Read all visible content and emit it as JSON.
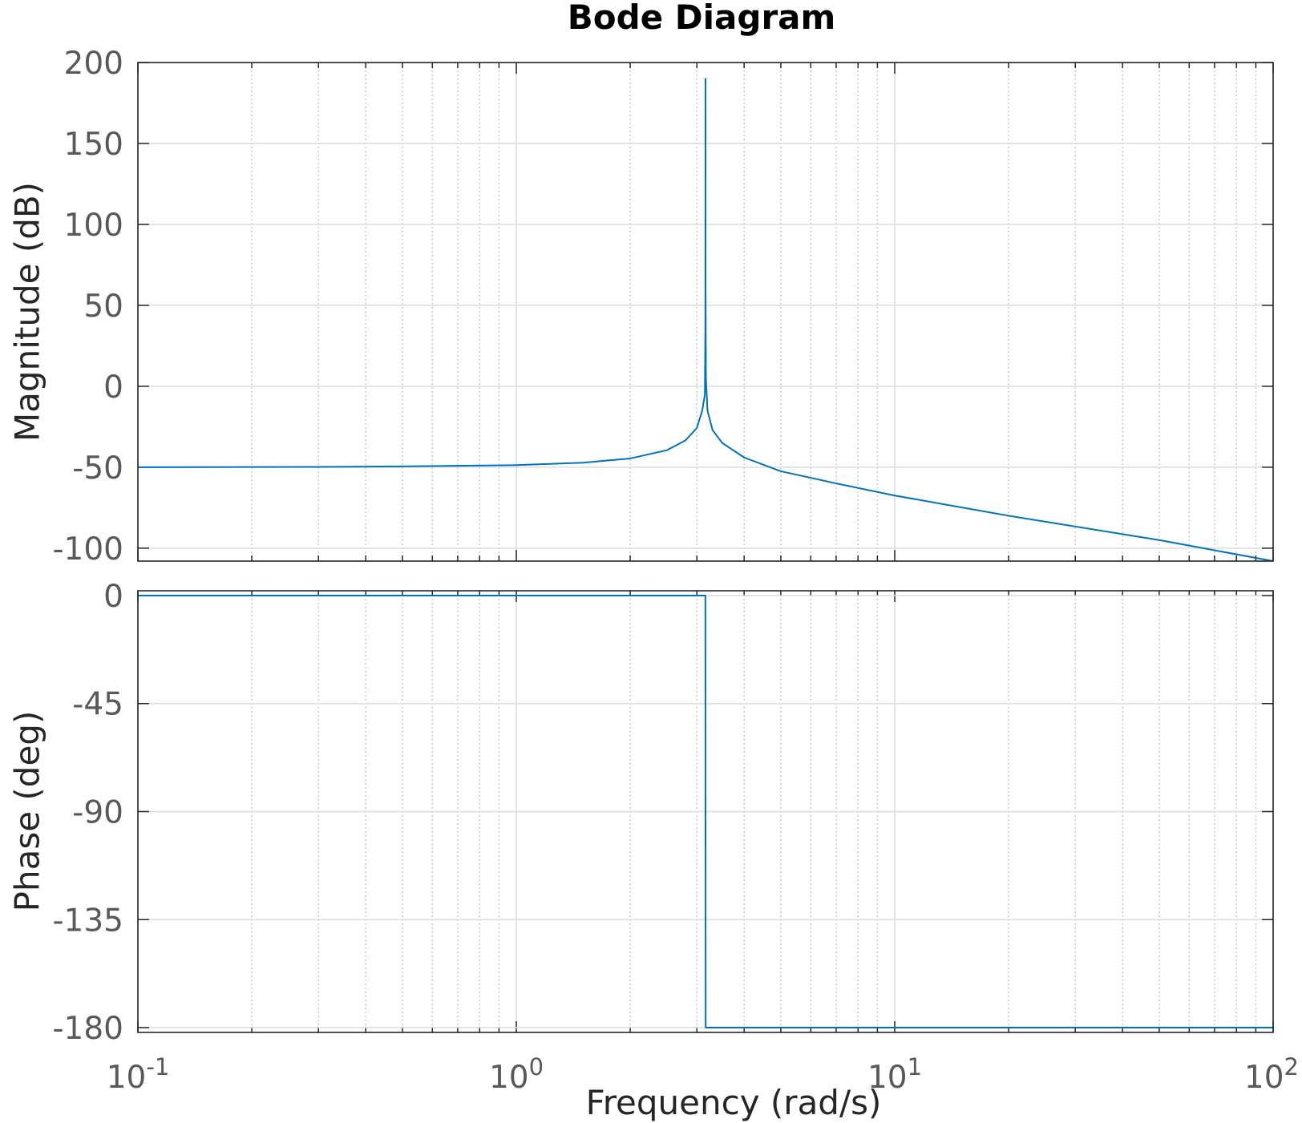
{
  "chart_data": {
    "type": "line",
    "title": "Bode Diagram",
    "xlabel": "Frequency  (rad/s)",
    "xscale": "log",
    "xlim": [
      0.1,
      100
    ],
    "x_ticks": [
      {
        "base": "10",
        "exp": "-1",
        "value": 0.1
      },
      {
        "base": "10",
        "exp": "0",
        "value": 1
      },
      {
        "base": "10",
        "exp": "1",
        "value": 10
      },
      {
        "base": "10",
        "exp": "2",
        "value": 100
      }
    ],
    "grid": true,
    "line_color": "#0072bd",
    "panels": [
      {
        "name": "magnitude",
        "ylabel": "Magnitude (dB)",
        "ylim": [
          -108,
          200
        ],
        "yticks": [
          200,
          150,
          100,
          50,
          0,
          -50,
          -100
        ],
        "ytick_labels": [
          "200",
          "150",
          "100",
          "50",
          "0",
          "-50",
          "-100"
        ],
        "x": [
          0.1,
          0.3,
          0.5,
          1.0,
          1.5,
          2.0,
          2.5,
          2.8,
          3.0,
          3.1,
          3.15,
          3.16,
          3.162,
          3.163,
          3.17,
          3.2,
          3.3,
          3.5,
          4.0,
          5.0,
          7.0,
          10.0,
          20.0,
          50.0,
          100.0
        ],
        "y": [
          -50,
          -49.8,
          -49.5,
          -48.7,
          -47.2,
          -44.6,
          -39.5,
          -33.4,
          -25.8,
          -15,
          -5,
          40,
          190,
          60,
          5,
          -15,
          -27,
          -35,
          -44,
          -52.5,
          -60,
          -67.5,
          -80,
          -95,
          -108
        ]
      },
      {
        "name": "phase",
        "ylabel": "Phase (deg)",
        "ylim": [
          -182,
          2
        ],
        "yticks": [
          0,
          -45,
          -90,
          -135,
          -180
        ],
        "ytick_labels": [
          "0",
          "-45",
          "-90",
          "-135",
          "-180"
        ],
        "x": [
          0.1,
          3.16,
          3.162,
          3.165,
          100.0
        ],
        "y": [
          0,
          0,
          -90,
          -180,
          -180
        ]
      }
    ]
  }
}
